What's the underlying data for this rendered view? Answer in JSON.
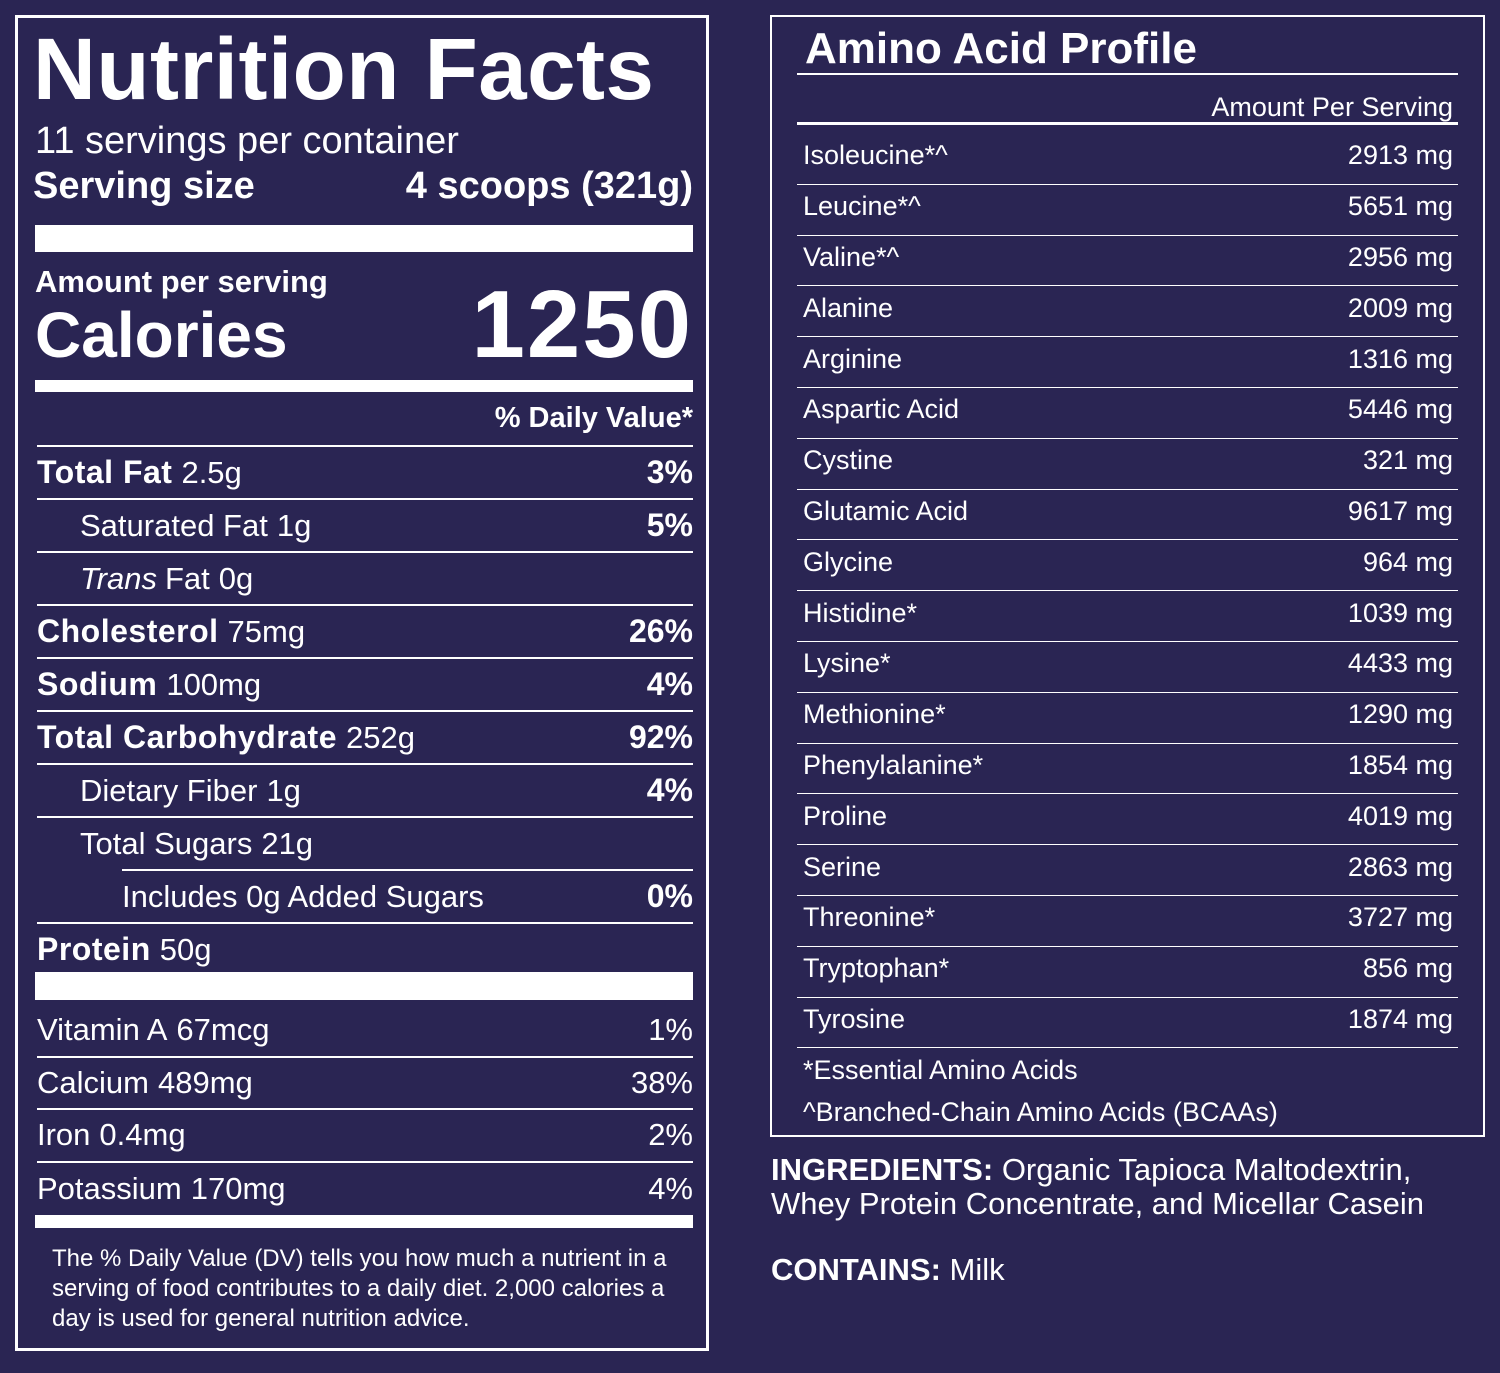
{
  "nutrition_facts": {
    "title": "Nutrition Facts",
    "servings": "11 servings per container",
    "serving_size_label": "Serving size",
    "serving_size": "4 scoops (321g)",
    "amount_per_serving": "Amount per serving",
    "calories_label": "Calories",
    "calories": 1250,
    "daily_value_header": "% Daily Value*",
    "nutrients": [
      {
        "name": "Total Fat",
        "amount": "2.5g",
        "daily_value": "3%",
        "sub": [
          {
            "name": "Saturated Fat",
            "amount": "1g",
            "daily_value": "5%"
          },
          {
            "name_italic": "Trans",
            "name": "Fat",
            "amount": "0g"
          }
        ]
      },
      {
        "name": "Cholesterol",
        "amount": "75mg",
        "daily_value": "26%"
      },
      {
        "name": "Sodium",
        "amount": "100mg",
        "daily_value": "4%"
      },
      {
        "name": "Total Carbohydrate",
        "amount": "252g",
        "daily_value": "92%",
        "sub": [
          {
            "name": "Dietary Fiber",
            "amount": "1g",
            "daily_value": "4%"
          },
          {
            "name": "Total Sugars",
            "amount": "21g",
            "sub": [
              {
                "name": "Includes 0g Added Sugars",
                "daily_value": "0%"
              }
            ]
          }
        ]
      },
      {
        "name": "Protein",
        "amount": "50g"
      }
    ],
    "vitamins": [
      {
        "name": "Vitamin A",
        "amount": "67mcg",
        "daily_value": "1%"
      },
      {
        "name": "Calcium",
        "amount": "489mg",
        "daily_value": "38%"
      },
      {
        "name": "Iron",
        "amount": "0.4mg",
        "daily_value": "2%"
      },
      {
        "name": "Potassium",
        "amount": "170mg",
        "daily_value": "4%"
      }
    ],
    "footnote": "The % Daily Value (DV) tells you how much a nutrient in a serving of food contributes to a daily diet. 2,000 calories a day is used for general nutrition advice."
  },
  "amino_acid_profile": {
    "title": "Amino Acid Profile",
    "header": "Amount Per Serving",
    "rows": [
      {
        "name": "Isoleucine*^",
        "amount": "2913 mg"
      },
      {
        "name": "Leucine*^",
        "amount": "5651 mg"
      },
      {
        "name": "Valine*^",
        "amount": "2956 mg"
      },
      {
        "name": "Alanine",
        "amount": "2009 mg"
      },
      {
        "name": "Arginine",
        "amount": "1316 mg"
      },
      {
        "name": "Aspartic Acid",
        "amount": "5446 mg"
      },
      {
        "name": "Cystine",
        "amount": "321 mg"
      },
      {
        "name": "Glutamic Acid",
        "amount": "9617 mg"
      },
      {
        "name": "Glycine",
        "amount": "964 mg"
      },
      {
        "name": "Histidine*",
        "amount": "1039 mg"
      },
      {
        "name": "Lysine*",
        "amount": "4433 mg"
      },
      {
        "name": "Methionine*",
        "amount": "1290 mg"
      },
      {
        "name": "Phenylalanine*",
        "amount": "1854 mg"
      },
      {
        "name": "Proline",
        "amount": "4019 mg"
      },
      {
        "name": "Serine",
        "amount": "2863 mg"
      },
      {
        "name": "Threonine*",
        "amount": "3727 mg"
      },
      {
        "name": "Tryptophan*",
        "amount": "856 mg"
      },
      {
        "name": "Tyrosine",
        "amount": "1874 mg"
      }
    ],
    "notes": [
      "*Essential Amino Acids",
      "^Branched-Chain Amino Acids (BCAAs)"
    ]
  },
  "ingredients": {
    "label": "INGREDIENTS:",
    "text": "Organic Tapioca Maltodextrin, Whey Protein Concentrate, and Micellar Casein"
  },
  "contains": {
    "label": "CONTAINS:",
    "text": "Milk"
  }
}
